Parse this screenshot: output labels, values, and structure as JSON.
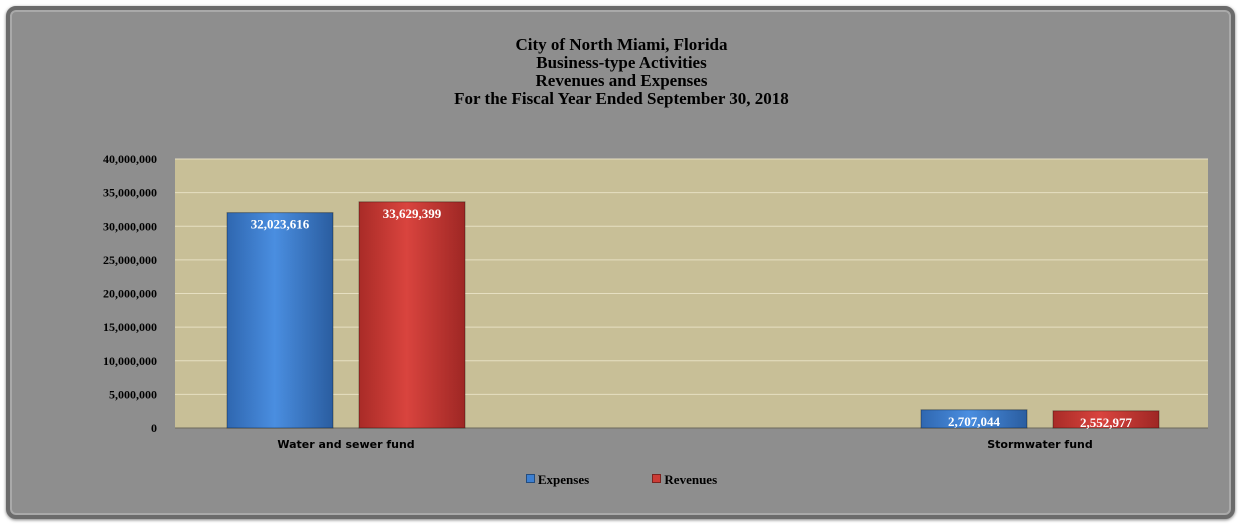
{
  "chart_data": {
    "type": "bar",
    "title": [
      "City of North Miami,  Florida",
      "Business-type Activities",
      "Revenues and Expenses",
      "For the Fiscal Year Ended  September 30, 2018"
    ],
    "categories": [
      "Water and sewer fund",
      "Stormwater fund"
    ],
    "series": [
      {
        "name": "Expenses",
        "values": [
          32023616,
          2707044
        ],
        "labels": [
          "32,023,616",
          "2,707,044"
        ],
        "color": "#3d7fd0"
      },
      {
        "name": "Revenues",
        "values": [
          33629399,
          2552977
        ],
        "labels": [
          "33,629,399",
          "2,552,977"
        ],
        "color": "#cc3c36"
      }
    ],
    "ylim": [
      0,
      40000000
    ],
    "yticks": [
      0,
      5000000,
      10000000,
      15000000,
      20000000,
      25000000,
      30000000,
      35000000,
      40000000
    ],
    "ytick_labels": [
      "0",
      "5,000,000",
      "10,000,000",
      "15,000,000",
      "20,000,000",
      "25,000,000",
      "30,000,000",
      "35,000,000",
      "40,000,000"
    ],
    "xlabel": "",
    "ylabel": "",
    "grid": true,
    "legend_position": "bottom",
    "plot_background": "#c8bf97",
    "frame_background": "#8e8e8e"
  }
}
